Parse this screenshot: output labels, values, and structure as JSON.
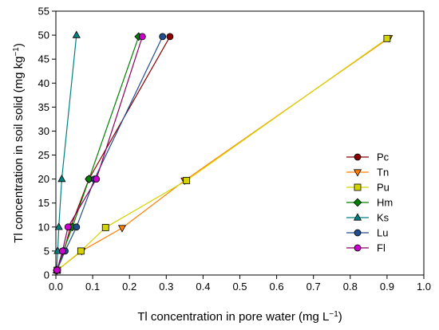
{
  "chart_data": {
    "type": "scatter",
    "title": "",
    "xlabel": "Tl concentration in pore water (mg L",
    "xlabel_sup": "−1",
    "xlabel_end": ")",
    "ylabel": "Tl concentration in soil solid (mg kg",
    "ylabel_sup": "−1",
    "ylabel_end": ")",
    "xlim": [
      0,
      1.0
    ],
    "ylim": [
      0,
      55
    ],
    "xticks": [
      "0.0",
      "0.1",
      "0.2",
      "0.3",
      "0.4",
      "0.5",
      "0.6",
      "0.7",
      "0.8",
      "0.9",
      "1.0"
    ],
    "yticks": [
      "0",
      "5",
      "10",
      "15",
      "20",
      "25",
      "30",
      "35",
      "40",
      "45",
      "50",
      "55"
    ],
    "grid": false,
    "legend_position": "right",
    "series": [
      {
        "name": "Pc",
        "marker": "circle",
        "color": "#8b0000",
        "line_color": "#8b0000",
        "x": [
          0.003,
          0.022,
          0.04,
          0.09,
          0.31
        ],
        "y": [
          1,
          5,
          10,
          20,
          49.7
        ]
      },
      {
        "name": "Tn",
        "marker": "triangle-down",
        "color": "#ff8000",
        "line_color": "#ff8000",
        "x": [
          0.004,
          0.07,
          0.18,
          0.35,
          0.905
        ],
        "y": [
          1,
          5,
          9.8,
          19.7,
          49.4
        ]
      },
      {
        "name": "Pu",
        "marker": "square",
        "color": "#d4d400",
        "line_color": "#d4d400",
        "x": [
          0.004,
          0.068,
          0.135,
          0.355,
          0.9
        ],
        "y": [
          1,
          5,
          9.9,
          19.7,
          49.3
        ]
      },
      {
        "name": "Hm",
        "marker": "diamond",
        "color": "#008000",
        "line_color": "#008000",
        "x": [
          0.003,
          0.02,
          0.045,
          0.09,
          0.225
        ],
        "y": [
          1,
          5,
          10,
          20,
          49.7
        ]
      },
      {
        "name": "Ks",
        "marker": "triangle-up",
        "color": "#008080",
        "line_color": "#008080",
        "x": [
          0.002,
          0.005,
          0.008,
          0.016,
          0.056
        ],
        "y": [
          1,
          5,
          10,
          20,
          50
        ]
      },
      {
        "name": "Lu",
        "marker": "circle",
        "color": "#1f4e8c",
        "line_color": "#1f4e8c",
        "x": [
          0.003,
          0.025,
          0.056,
          0.105,
          0.29
        ],
        "y": [
          1,
          5,
          10,
          20,
          49.7
        ]
      },
      {
        "name": "Fl",
        "marker": "circle",
        "color": "#cc00cc",
        "line_color": "#8b0060",
        "x": [
          0.003,
          0.018,
          0.033,
          0.11,
          0.235
        ],
        "y": [
          1,
          5,
          10,
          20,
          49.7
        ]
      }
    ]
  }
}
